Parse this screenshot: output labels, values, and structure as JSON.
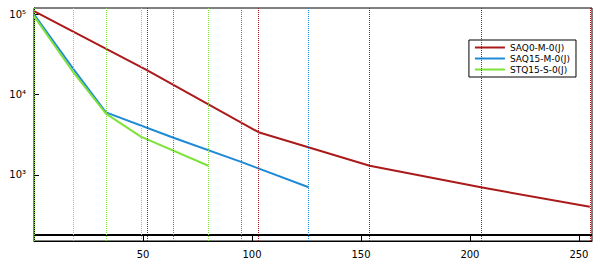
{
  "chart_data": {
    "type": "line",
    "log": "y",
    "grid": false,
    "legend": "upper right",
    "xlim": [
      0,
      256
    ],
    "xticks": [
      50,
      100,
      150,
      200,
      250
    ],
    "ylim": [
      150,
      120000
    ],
    "yticks": [
      {
        "value": 1000,
        "label": "10³"
      },
      {
        "value": 10000,
        "label": "10⁴"
      },
      {
        "value": 100000,
        "label": "10⁵"
      }
    ],
    "series": [
      {
        "name": "SAQ0-M-0(J)",
        "color": "#aa1a1a",
        "x": [
          0,
          52,
          103,
          154,
          205,
          255
        ],
        "values": [
          110000,
          20000,
          3400,
          1300,
          700,
          400
        ]
      },
      {
        "name": "SAQ15-M-0(J)",
        "color": "#1e8ad6",
        "x": [
          0,
          18,
          33,
          64,
          95,
          126
        ],
        "values": [
          100000,
          21000,
          6000,
          2900,
          1450,
          700
        ]
      },
      {
        "name": "STQ15-S-0(J)",
        "color": "#7ee23a",
        "x": [
          0,
          18,
          33,
          49,
          80
        ],
        "values": [
          95000,
          19000,
          5800,
          3000,
          1300
        ]
      }
    ],
    "reference_lines": [
      {
        "y": 180,
        "color": "#000000"
      }
    ]
  }
}
